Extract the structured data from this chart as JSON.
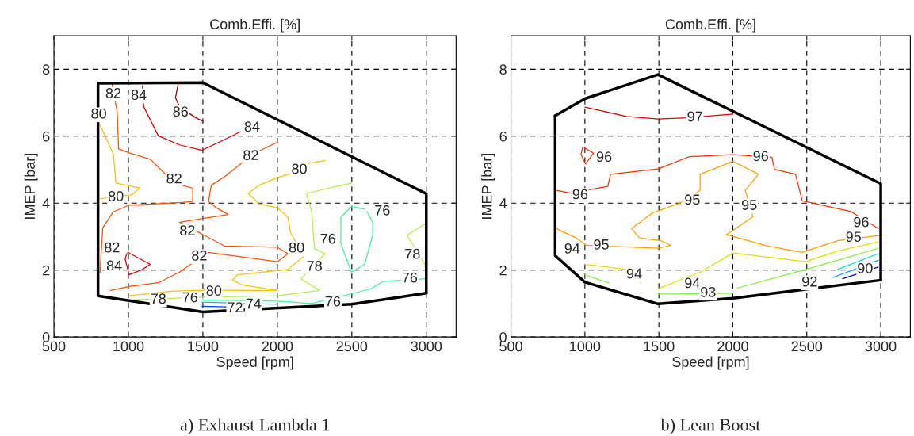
{
  "chart_data": [
    {
      "type": "line",
      "title": "Comb.Effi. [%]",
      "xlabel": "Speed [rpm]",
      "ylabel": "IMEP [bar]",
      "xlim": [
        500,
        3200
      ],
      "ylim": [
        0,
        9
      ],
      "xticks": [
        500,
        1000,
        1500,
        2000,
        2500,
        3000
      ],
      "yticks": [
        0,
        2,
        4,
        6,
        8
      ],
      "grid": true,
      "marker": "none",
      "line_style": "solid",
      "series": [
        {
          "color": "#000000",
          "x": [
            796,
            1500,
            3000,
            3000
          ],
          "values": [
            7.58,
            7.6,
            4.28,
            1.31
          ]
        },
        {
          "color": "#000000",
          "x": [
            3000,
            2500,
            1500,
            796,
            796
          ],
          "values": [
            1.31,
            0.98,
            0.75,
            1.23,
            7.58
          ]
        },
        {
          "color": "#a00000",
          "x": [
            1334,
            1316,
            1343,
            1449,
            1503
          ],
          "values": [
            7.55,
            7.15,
            6.88,
            6.56,
            6.44
          ]
        },
        {
          "color": "#e00000",
          "x": [
            1094,
            1103,
            1201,
            1343,
            1494,
            1627,
            1751
          ],
          "values": [
            7.5,
            6.88,
            6.01,
            5.74,
            5.58,
            5.86,
            6.13
          ]
        },
        {
          "color": "#ff5000",
          "x": [
            890,
            925,
            934,
            1005,
            1147,
            1254,
            1360,
            1432,
            1432,
            1360,
            1005,
            899,
            828,
            810
          ],
          "values": [
            7.55,
            6.72,
            5.62,
            5.5,
            5.31,
            4.84,
            4.53,
            4.45,
            4.05,
            4.02,
            3.94,
            3.74,
            3.27,
            1.94
          ]
        },
        {
          "color": "#ff5000",
          "x": [
            2000,
            1876,
            1769,
            1662,
            1556,
            1538,
            1591,
            1671,
            1343,
            1645,
            2000,
            2071,
            2000,
            1538,
            1343,
            1201,
            1005,
            881
          ],
          "values": [
            5.82,
            5.55,
            5.23,
            4.84,
            4.53,
            4.05,
            3.86,
            3.66,
            3.43,
            2.72,
            2.68,
            2.49,
            2.25,
            2.53,
            1.94,
            1.62,
            1.51,
            1.39
          ]
        },
        {
          "color": "#e00000",
          "x": [
            996,
            1147,
            1094,
            1005,
            978,
            990
          ],
          "values": [
            2.53,
            2.17,
            2.02,
            1.86,
            2.33,
            2.5
          ]
        },
        {
          "color": "#ffc000",
          "x": [
            810,
            899,
            916,
            1076,
            1023,
            810
          ],
          "values": [
            6.33,
            5.47,
            4.6,
            4.45,
            4.25,
            4.13
          ]
        },
        {
          "color": "#ffc000",
          "x": [
            2320,
            2213,
            2089,
            2000,
            1876,
            1805,
            1876,
            2000,
            2071,
            2089,
            2178,
            2071,
            1733,
            1698,
            1769,
            2000
          ],
          "values": [
            5.27,
            5.19,
            4.88,
            4.76,
            4.53,
            4.29,
            3.98,
            3.86,
            3.58,
            3.11,
            2.41,
            2.02,
            1.86,
            1.7,
            1.55,
            1.39
          ]
        },
        {
          "color": "#ffc000",
          "x": [
            1005,
            1290,
            1494,
            2000
          ],
          "values": [
            1.23,
            1.37,
            1.4,
            1.39
          ]
        },
        {
          "color": "#b0f040",
          "x": [
            2500,
            2195,
            2231,
            2249,
            2320,
            2160,
            2284,
            2000,
            1494,
            1005
          ],
          "values": [
            4.6,
            4.29,
            3.74,
            2.64,
            2.49,
            1.74,
            1.39,
            1.23,
            1.19,
            1.11
          ]
        },
        {
          "color": "#b0f040",
          "x": [
            2996,
            2871,
            2996
          ],
          "values": [
            3.39,
            3.04,
            2.13
          ]
        },
        {
          "color": "#40f0a0",
          "x": [
            2586,
            2497,
            2426,
            2426,
            2497,
            2586,
            2640,
            2640,
            2600
          ],
          "values": [
            3.82,
            3.9,
            3.58,
            2.8,
            1.94,
            2.17,
            3.04,
            3.43,
            3.75
          ]
        },
        {
          "color": "#40f0a0",
          "x": [
            2996,
            2711,
            2622,
            2231,
            2000,
            1494
          ],
          "values": [
            1.74,
            1.66,
            1.43,
            1.0,
            1.07,
            1.11
          ]
        },
        {
          "color": "#00c0ff",
          "x": [
            1494,
            2000
          ],
          "values": [
            1.04,
            0.98
          ]
        },
        {
          "color": "#0040ff",
          "x": [
            1494,
            1660
          ],
          "values": [
            0.92,
            0.9
          ]
        }
      ],
      "annotations": [
        {
          "text": "86",
          "x": 1350,
          "y": 6.7
        },
        {
          "text": "84",
          "x": 1070,
          "y": 7.2
        },
        {
          "text": "84",
          "x": 1830,
          "y": 6.25
        },
        {
          "text": "82",
          "x": 899,
          "y": 7.25
        },
        {
          "text": "82",
          "x": 1307,
          "y": 4.7
        },
        {
          "text": "82",
          "x": 890,
          "y": 2.64
        },
        {
          "text": "82",
          "x": 1822,
          "y": 5.4
        },
        {
          "text": "82",
          "x": 1396,
          "y": 3.15
        },
        {
          "text": "82",
          "x": 1476,
          "y": 2.4
        },
        {
          "text": "84",
          "x": 905,
          "y": 2.1
        },
        {
          "text": "80",
          "x": 801,
          "y": 6.64
        },
        {
          "text": "80",
          "x": 916,
          "y": 4.17
        },
        {
          "text": "80",
          "x": 2147,
          "y": 4.99
        },
        {
          "text": "80",
          "x": 2129,
          "y": 2.64
        },
        {
          "text": "80",
          "x": 1574,
          "y": 1.35
        },
        {
          "text": "78",
          "x": 2249,
          "y": 2.09
        },
        {
          "text": "78",
          "x": 1201,
          "y": 1.11
        },
        {
          "text": "78",
          "x": 2907,
          "y": 2.45
        },
        {
          "text": "76",
          "x": 2705,
          "y": 3.75
        },
        {
          "text": "76",
          "x": 2340,
          "y": 2.9
        },
        {
          "text": "76",
          "x": 1414,
          "y": 1.15
        },
        {
          "text": "76",
          "x": 2373,
          "y": 1.03
        },
        {
          "text": "76",
          "x": 2889,
          "y": 1.74
        },
        {
          "text": "74",
          "x": 1840,
          "y": 0.96
        },
        {
          "text": "72",
          "x": 1716,
          "y": 0.85
        },
        "a) Exhaust Lambda 1"
      ]
    },
    {
      "type": "line",
      "title": "Comb.Effi. [%]",
      "xlabel": "Speed [rpm]",
      "ylabel": "IMEP [bar]",
      "xlim": [
        500,
        3200
      ],
      "ylim": [
        0,
        9
      ],
      "xticks": [
        500,
        1000,
        1500,
        2000,
        2500,
        3000
      ],
      "yticks": [
        0,
        2,
        4,
        6,
        8
      ],
      "grid": true,
      "marker": "none",
      "line_style": "solid",
      "series": [
        {
          "color": "#000000",
          "x": [
            799,
            1000,
            1494,
            3000,
            3000
          ],
          "values": [
            6.61,
            7.12,
            7.84,
            4.58,
            1.7
          ]
        },
        {
          "color": "#000000",
          "x": [
            3000,
            2002,
            1494,
            1000,
            799,
            799
          ],
          "values": [
            1.7,
            1.16,
            0.99,
            1.64,
            2.43,
            6.61
          ]
        },
        {
          "color": "#e00000",
          "x": [
            1000,
            1280,
            1494,
            1690,
            2002
          ],
          "values": [
            6.87,
            6.59,
            6.51,
            6.55,
            6.66
          ]
        },
        {
          "color": "#ff3000",
          "x": [
            986,
            974,
            1004,
            1058,
            995
          ],
          "values": [
            5.69,
            5.45,
            5.17,
            5.49,
            5.66
          ]
        },
        {
          "color": "#ff3000",
          "x": [
            807,
            905,
            1155,
            1173,
            1494,
            1708,
            2002,
            2264,
            2282,
            2424,
            2469,
            2798,
            2983
          ],
          "values": [
            4.38,
            4.3,
            4.5,
            4.86,
            5.02,
            5.39,
            5.45,
            5.37,
            5.01,
            4.86,
            4.07,
            3.75,
            3.24
          ]
        },
        {
          "color": "#ffa000",
          "x": [
            807,
            941,
            1012,
            1494,
            1583,
            1512,
            1369,
            1316,
            1458,
            1637,
            1779,
            1779,
            2002,
            2173,
            2084,
            2137,
            1957,
            2225,
            2469,
            2709,
            3000
          ],
          "values": [
            3.24,
            2.96,
            2.74,
            2.65,
            2.74,
            2.88,
            2.96,
            3.24,
            3.71,
            3.99,
            4.38,
            4.86,
            5.25,
            4.86,
            4.38,
            3.59,
            3.06,
            2.73,
            2.53,
            2.88,
            3.04
          ]
        },
        {
          "color": "#e0e000",
          "x": [
            1000,
            1280,
            1378
          ],
          "values": [
            2.17,
            2.02,
            1.62
          ]
        },
        {
          "color": "#e0e000",
          "x": [
            1494,
            1779,
            2002,
            2492,
            2709,
            2983
          ],
          "values": [
            1.44,
            1.94,
            2.51,
            2.25,
            2.57,
            2.84
          ]
        },
        {
          "color": "#80f040",
          "x": [
            1000,
            1164
          ],
          "values": [
            1.86,
            1.61
          ]
        },
        {
          "color": "#80f040",
          "x": [
            1494,
            2002
          ],
          "values": [
            1.28,
            1.31
          ]
        },
        {
          "color": "#80f040",
          "x": [
            2030,
            2492,
            2709,
            2983
          ],
          "values": [
            1.46,
            2.02,
            2.29,
            2.65
          ]
        },
        {
          "color": "#00e0e0",
          "x": [
            2709,
            2983
          ],
          "values": [
            2.02,
            2.49
          ]
        },
        {
          "color": "#0090ff",
          "x": [
            2678,
            2983
          ],
          "values": [
            1.78,
            2.29
          ]
        },
        {
          "color": "#0000e0",
          "x": [
            2742,
            2983
          ],
          "values": [
            1.74,
            2.09
          ]
        }
      ],
      "annotations": [
        {
          "text": "97",
          "x": 1744,
          "y": 6.55
        },
        {
          "text": "96",
          "x": 1130,
          "y": 5.35
        },
        {
          "text": "96",
          "x": 968,
          "y": 4.23
        },
        {
          "text": "96",
          "x": 2189,
          "y": 5.37
        },
        {
          "text": "96",
          "x": 2868,
          "y": 3.4
        },
        {
          "text": "95",
          "x": 1111,
          "y": 2.73
        },
        {
          "text": "95",
          "x": 1726,
          "y": 4.07
        },
        {
          "text": "95",
          "x": 2111,
          "y": 3.91
        },
        {
          "text": "95",
          "x": 2816,
          "y": 2.96
        },
        {
          "text": "94",
          "x": 914,
          "y": 2.61
        },
        {
          "text": "94",
          "x": 1333,
          "y": 1.86
        },
        {
          "text": "94",
          "x": 1726,
          "y": 1.58
        },
        {
          "text": "93",
          "x": 1833,
          "y": 1.31
        },
        {
          "text": "92",
          "x": 2519,
          "y": 1.62
        },
        {
          "text": "90",
          "x": 2894,
          "y": 2.02
        },
        "b) Lean Boost"
      ]
    }
  ]
}
